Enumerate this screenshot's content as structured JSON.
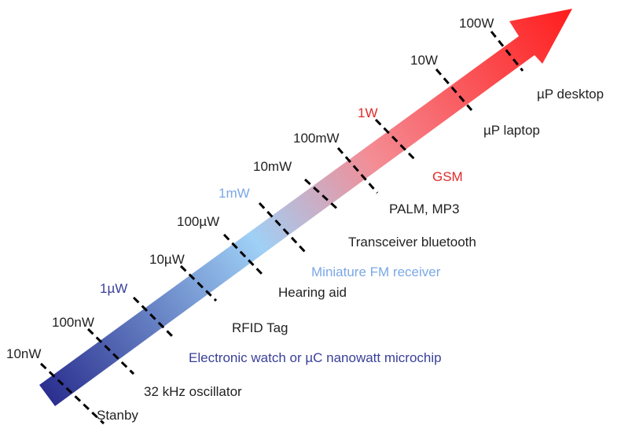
{
  "colors": {
    "arrow_start": "#2b2f8f",
    "arrow_mid": "#9fd0f6",
    "arrow_end": "#ff1e1e",
    "tick_line": "#000000",
    "text_default": "#222222",
    "text_dark_blue": "#3a3f99",
    "text_light_blue": "#7aa8e6",
    "text_red": "#e02a2a"
  },
  "power_levels": [
    {
      "label": "10nW",
      "color": "text_default"
    },
    {
      "label": "100nW",
      "color": "text_default"
    },
    {
      "label": "1µW",
      "color": "text_dark_blue"
    },
    {
      "label": "10µW",
      "color": "text_default"
    },
    {
      "label": "100µW",
      "color": "text_default"
    },
    {
      "label": "1mW",
      "color": "text_light_blue"
    },
    {
      "label": "10mW",
      "color": "text_default"
    },
    {
      "label": "100mW",
      "color": "text_default"
    },
    {
      "label": "1W",
      "color": "text_red"
    },
    {
      "label": "10W",
      "color": "text_default"
    },
    {
      "label": "100W",
      "color": "text_default"
    }
  ],
  "applications": [
    {
      "label": "Stanby",
      "color": "text_default"
    },
    {
      "label": "32 kHz oscillator",
      "color": "text_default"
    },
    {
      "label": "Electronic watch or µC nanowatt microchip",
      "color": "text_dark_blue"
    },
    {
      "label": "RFID Tag",
      "color": "text_default"
    },
    {
      "label": "Hearing aid",
      "color": "text_default"
    },
    {
      "label": "Miniature FM receiver",
      "color": "text_light_blue"
    },
    {
      "label": "Transceiver bluetooth",
      "color": "text_default"
    },
    {
      "label": "PALM, MP3",
      "color": "text_default"
    },
    {
      "label": "GSM",
      "color": "text_red"
    },
    {
      "label": "µP laptop",
      "color": "text_default"
    },
    {
      "label": "µP desktop",
      "color": "text_default"
    }
  ]
}
